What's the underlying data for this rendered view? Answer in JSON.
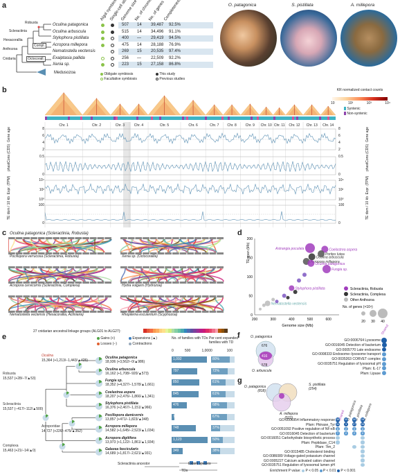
{
  "panels": {
    "a": "a",
    "b": "b",
    "c": "c",
    "d": "d",
    "e": "e",
    "f": "f",
    "g": "g"
  },
  "panel_a": {
    "col_headers": [
      "Algal symbiosis",
      "Single-cell atlas",
      "Genome size (Mb)",
      "No. of chromosomes",
      "No. of genes",
      "Completeness"
    ],
    "clades": [
      "Robusta",
      "Scleractinia",
      "Hexacorallia",
      "Anthozoa",
      "Cnidaria",
      "Compl.",
      "Octocorall.",
      "Medusozoa"
    ],
    "rows": [
      {
        "species": "Oculina patagonica",
        "size": "507",
        "chrom": "14",
        "genes": "39,487",
        "comp": "92.5%"
      },
      {
        "species": "Oculina arbuscula",
        "size": "515",
        "chrom": "14",
        "genes": "34,496",
        "comp": "91.1%"
      },
      {
        "species": "Stylophora pistillata",
        "size": "400",
        "chrom": "—",
        "genes": "29,419",
        "comp": "94.5%"
      },
      {
        "species": "Acropora millepora",
        "size": "475",
        "chrom": "14",
        "genes": "28,188",
        "comp": "76.9%"
      },
      {
        "species": "Nematostella vectensis",
        "size": "269",
        "chrom": "15",
        "genes": "20,535",
        "comp": "97.4%"
      },
      {
        "species": "Exaiptasia pallida",
        "size": "256",
        "chrom": "—",
        "genes": "22,509",
        "comp": "92.2%"
      },
      {
        "species": "Xenia sp.",
        "size": "223",
        "chrom": "15",
        "genes": "27,158",
        "comp": "86.8%"
      }
    ],
    "legend": [
      "Obligate symbiosis",
      "Facultative symbiosis",
      "This study",
      "Previous studies"
    ],
    "photos": [
      "O. patagonica",
      "S. pistillata",
      "A. millepora"
    ]
  },
  "panel_b": {
    "legend_title": "KR normalized contact counts",
    "legend_ticks": [
      "10",
      "10²",
      "10³",
      "10⁴"
    ],
    "synteny": [
      "Syntenic",
      "Non-syntenic"
    ],
    "chromosomes": [
      "Chr. 1",
      "Chr. 2",
      "Chr. 3",
      "Chr. 4",
      "Chr. 5",
      "Chr. 6",
      "Chr. 7",
      "Chr. 8",
      "Chr. 9",
      "Chr. 10",
      "Chr. 11",
      "Chr. 12",
      "Chr. 13",
      "Chr. 14"
    ],
    "tracks": [
      {
        "label": "Gene age",
        "ticks": [
          "8",
          "6",
          "4",
          "2"
        ]
      },
      {
        "label": "phastCons (CDS)",
        "ticks": [
          "0.5",
          "0"
        ]
      },
      {
        "label": "Expr. (TPM)",
        "ticks": [
          "10⁴",
          "10²",
          "10⁰"
        ]
      },
      {
        "label": "TE dom / 10 kb",
        "ticks": [
          "100",
          "0"
        ]
      }
    ],
    "ref_species": "Oculina patagonica (Scleractinia, Robusta)"
  },
  "panel_c": {
    "left": [
      "Pocillopora verrucosa (Scleractinia, Robusta)",
      "Acropora cervicornis (Scleractinia, Complexa)",
      "Nematostella vectensis (Hexacorallia, Actiniaria)"
    ],
    "right": [
      "Xenia sp. (Octocorallia)",
      "Hydra vulgaris (Hydrozoa)",
      "Rhopilema esculentum (Scyphozoa)"
    ],
    "alg_label": "27 cnidarian ancestral linkage groups (ALG01 to ALG27):",
    "alg_colors": [
      "#d73027",
      "#e85a3b",
      "#f46d43",
      "#f99a50",
      "#fdae61",
      "#fdd17f",
      "#fee08b",
      "#e6f598",
      "#d0ec80",
      "#abdda4",
      "#86cfa5",
      "#66c2a5",
      "#4aa9b0",
      "#3288bd",
      "#4f6db3",
      "#5e4fa2",
      "#7d3f9c",
      "#9c2f95",
      "#b81f89",
      "#cc1a78",
      "#de2d6a",
      "#e8466c",
      "#f06f8b",
      "#f59fae",
      "#b35806",
      "#8c510a",
      "#5a3a1a"
    ]
  },
  "panel_d": {
    "ylabel": "TE span (Mb)",
    "xlabel": "Genome size (Mb)",
    "legend": [
      "Scleractinia, Robusta",
      "Scleractinia, Complexa",
      "Other Anthozoa"
    ],
    "size_label": "No. of genes (×10⁴)",
    "size_ticks": [
      "20",
      "30",
      "40"
    ],
    "labels": [
      "Astrangia poculata",
      "Coelastrea aspera",
      "Oculina arbuscula",
      "Porites lutea",
      "Acropora millepora",
      "Oculina patagonica",
      "Fungia sp.",
      "Stylophora pistillata",
      "Nematostella vectensis"
    ]
  },
  "panel_e": {
    "legend": [
      "Gains (+)",
      "Losses (−)",
      "Expansions (▲)",
      "Contractions"
    ],
    "col1": "No. of families with TDs",
    "col2": "Per cent expanded families with TD",
    "axis1": [
      "0",
      "500",
      "1,000"
    ],
    "axis2": [
      "0",
      "100"
    ],
    "nodes": [
      {
        "name": "Oculina",
        "stats": "15,364 (+1,213/−1,443/▲425)"
      },
      {
        "name": "Robusta",
        "stats": "15,537 (+28/−7/▲53)"
      },
      {
        "name": "Scleractinia",
        "stats": "15,537 (−417/−112/▲500)"
      },
      {
        "name": "Acroporidae",
        "stats": "14,727 (+226/−475/▲352)"
      },
      {
        "name": "Complexa",
        "stats": "15,463 (+21/−14/▲0)"
      }
    ],
    "species": [
      {
        "name": "Oculina patagonica",
        "stats": "18,936 (+3,562/−0/▲986)",
        "tds": "1,092",
        "pct": "80%"
      },
      {
        "name": "Oculina arbuscula",
        "stats": "16,162 (+1,708/−920/▲573)",
        "tds": "797",
        "pct": "72%"
      },
      {
        "name": "Fungia sp.",
        "stats": "18,352 (+4,327/−1,578/▲1,661)",
        "tds": "850",
        "pct": "61%"
      },
      {
        "name": "Coelastrea aspera",
        "stats": "18,207 (+2,476/−1,866/▲1,341)",
        "tds": "845",
        "pct": "61%"
      },
      {
        "name": "Stylophora pistillata",
        "stats": "16,376 (+2,467/−1,151/▲966)",
        "tds": "476",
        "pct": "68%"
      },
      {
        "name": "Pocillopora damicornis",
        "stats": "13,857 (+471/−1,823/▲348)",
        "tds": "78",
        "pct": "67%"
      },
      {
        "name": "Acropora millepora",
        "stats": "14,582 (+1,645/−2,523/▲1,034)",
        "tds": "748",
        "pct": "37%"
      },
      {
        "name": "Acropora digitifera",
        "stats": "13,973 (+1,122/−1,861/▲1,934)",
        "tds": "1,123",
        "pct": "50%"
      },
      {
        "name": "Galaxea fascicularis",
        "stats": "14,689 (+1,817/−2,621/▲931)",
        "tds": "349",
        "pct": "38%"
      }
    ],
    "bottom": [
      "Scleractinia ancestor",
      "Extant species",
      "TDs"
    ]
  },
  "panel_f": {
    "venn": [
      "O. patagonica",
      "O. arbuscula"
    ],
    "counts": [
      "676",
      "416",
      "578"
    ],
    "shared": "Shared",
    "terms": [
      "GO:0006764 Lysosome",
      "GO:0016045 Detection of bacterium",
      "GO:0005770 Late endosome",
      "GO:0008333 Endosome–lysosome transport",
      "GO:0035263 CORVET complex",
      "GO:0035751 Regulation of lysosomal pH",
      "Pfam: IL-17",
      "Pfam: Lipase"
    ]
  },
  "panel_g": {
    "venn": [
      "O. patagonica",
      "S. pistillata",
      "A. millepora"
    ],
    "sizes": [
      "(818)",
      "(254)",
      "(522)"
    ],
    "cols": [
      "Shared",
      "O. patagonica",
      "S. pistillata",
      "A. millepora"
    ],
    "terms": [
      "GO:0006954 Inflammatory response",
      "Pfam: Pkinase_Tyr",
      "GO:0051092 Positive regulation of NF-κB",
      "GO:0016045 Detection of bacterium",
      "GO:0016051 Carbohydrate biosynthetic process",
      "Pfam: Peptidase_C14",
      "Pfam: 7tm_2",
      "GO:0015485 Cholesterol binding",
      "GO:0086089 Voltage-gated potassium channel",
      "GO:0005227 Calcium activated cation channel",
      "GO:0035751 Regulation of lysosomal lumen pH"
    ],
    "counts": [
      [
        "39",
        "20",
        "30",
        "28"
      ],
      [
        "34",
        "3",
        "27",
        "33"
      ],
      [
        "8",
        "2",
        "2",
        "4"
      ],
      [
        "7",
        "2",
        "2",
        "2"
      ]
    ],
    "enrich_label": "Enrichment P value:",
    "enrich": [
      "P < 0.05",
      "P < 0.01",
      "P < 0.001"
    ]
  }
}
